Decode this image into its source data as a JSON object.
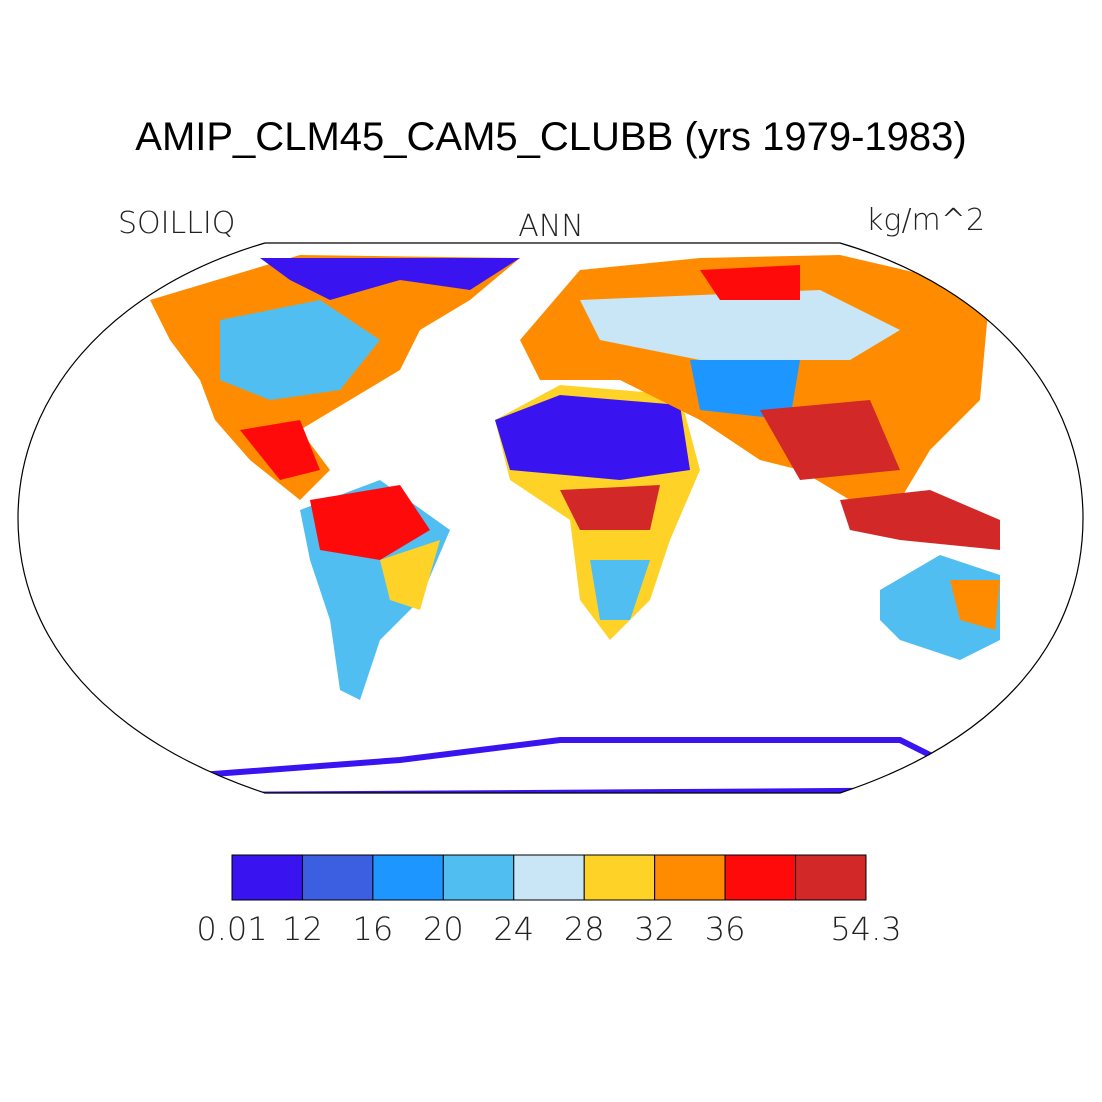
{
  "title": "AMIP_CLM45_CAM5_CLUBB (yrs 1979-1983)",
  "map": {
    "variable": "SOILLIQ",
    "season": "ANN",
    "units": "kg/m^2"
  },
  "colorbar": {
    "colors": [
      "#3a14f0",
      "#3c5ee0",
      "#1e96ff",
      "#50bef0",
      "#c8e6f5",
      "#ffd228",
      "#ff8c00",
      "#ff0a0a",
      "#d22828"
    ],
    "ticks": [
      0.01,
      12,
      16,
      20,
      24,
      28,
      32,
      36,
      null,
      54.3
    ]
  }
}
